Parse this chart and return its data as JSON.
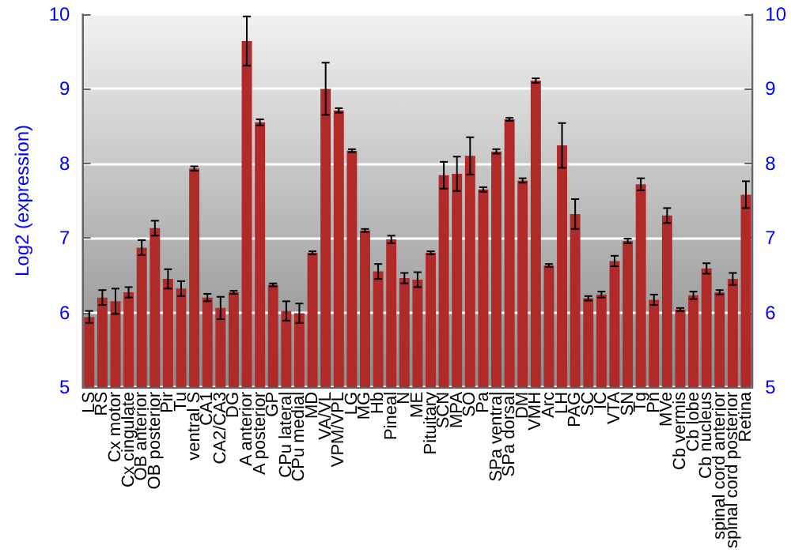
{
  "chart_data": {
    "type": "bar",
    "ylabel": "Log2 (expression)",
    "categories": [
      "LS",
      "RS",
      "Cx motor",
      "Cx cingulate",
      "OB anterior",
      "OB posterior",
      "Pir",
      "Tu",
      "ventral S",
      "CA1",
      "CA2/CA3",
      "DG",
      "A anterior",
      "A posterior",
      "GP",
      "CPu lateral",
      "CPu medial",
      "MD",
      "VA/VL",
      "VPM/VPL",
      "LG",
      "MG",
      "Hb",
      "Pineal",
      "N",
      "ME",
      "Pituitary",
      "SCN",
      "MPA",
      "SO",
      "Pa",
      "SPa ventral",
      "SPa dorsal",
      "DM",
      "VMH",
      "Arc",
      "LH",
      "PAG",
      "SC",
      "IC",
      "VTA",
      "SN",
      "Tg",
      "Pn",
      "MVe",
      "Cb vermis",
      "Cb lobe",
      "Cb nucleus",
      "spinal cord anterior",
      "spinal cord posterior",
      "Retina"
    ],
    "values": [
      5.94,
      6.2,
      6.15,
      6.27,
      6.87,
      7.13,
      6.45,
      6.32,
      7.93,
      6.2,
      6.06,
      6.27,
      9.64,
      8.55,
      6.37,
      6.02,
      5.99,
      6.8,
      9.0,
      8.71,
      8.17,
      7.1,
      6.55,
      6.98,
      6.46,
      6.44,
      6.8,
      7.84,
      7.86,
      8.1,
      7.65,
      8.16,
      8.59,
      7.77,
      9.11,
      6.63,
      8.24,
      7.32,
      6.19,
      6.24,
      6.69,
      6.96,
      7.72,
      6.17,
      7.3,
      6.04,
      6.23,
      6.59,
      6.27,
      6.45,
      7.58
    ],
    "errors": [
      0.08,
      0.1,
      0.17,
      0.07,
      0.1,
      0.1,
      0.13,
      0.1,
      0.03,
      0.05,
      0.15,
      0.02,
      0.33,
      0.04,
      0.02,
      0.13,
      0.13,
      0.02,
      0.35,
      0.03,
      0.02,
      0.02,
      0.1,
      0.05,
      0.07,
      0.1,
      0.02,
      0.18,
      0.23,
      0.25,
      0.03,
      0.03,
      0.02,
      0.03,
      0.03,
      0.02,
      0.3,
      0.2,
      0.03,
      0.04,
      0.07,
      0.03,
      0.08,
      0.07,
      0.1,
      0.02,
      0.05,
      0.07,
      0.03,
      0.08,
      0.18
    ],
    "color": "#b02a2a",
    "ylim": [
      5,
      10
    ],
    "yticks": [
      5,
      6,
      7,
      8,
      9,
      10
    ],
    "y2lim": [
      5,
      10
    ],
    "y2ticks": [
      5,
      6,
      7,
      8,
      9,
      10
    ],
    "grid": "y"
  }
}
